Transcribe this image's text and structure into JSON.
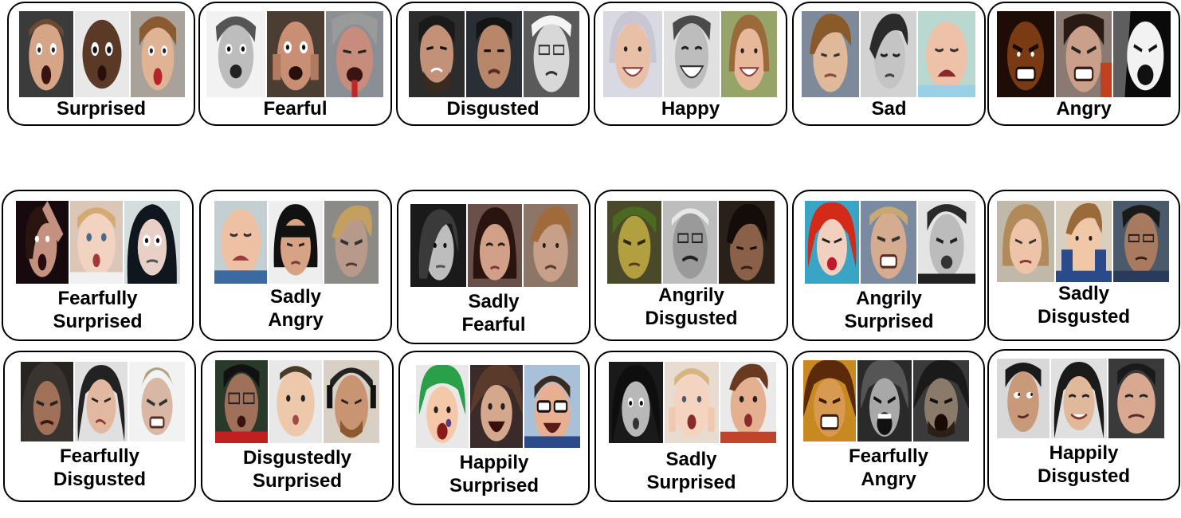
{
  "cards": [
    {
      "lines": [
        "Surprised"
      ]
    },
    {
      "lines": [
        "Fearful"
      ]
    },
    {
      "lines": [
        "Disgusted"
      ]
    },
    {
      "lines": [
        "Happy"
      ]
    },
    {
      "lines": [
        "Sad"
      ]
    },
    {
      "lines": [
        "Angry"
      ]
    },
    {
      "lines": [
        "Fearfully",
        "Surprised"
      ]
    },
    {
      "lines": [
        "Sadly",
        "Angry"
      ]
    },
    {
      "lines": [
        "Sadly",
        "Fearful"
      ]
    },
    {
      "lines": [
        "Angrily",
        "Disgusted"
      ]
    },
    {
      "lines": [
        "Angrily",
        "Surprised"
      ]
    },
    {
      "lines": [
        "Sadly",
        "Disgusted"
      ]
    },
    {
      "lines": [
        "Fearfully",
        "Disgusted"
      ]
    },
    {
      "lines": [
        "Disgustedly",
        "Surprised"
      ]
    },
    {
      "lines": [
        "Happily",
        "Surprised"
      ]
    },
    {
      "lines": [
        "Sadly",
        "Surprised"
      ]
    },
    {
      "lines": [
        "Fearfully",
        "Angry"
      ]
    },
    {
      "lines": [
        "Happily",
        "Disgusted"
      ]
    }
  ]
}
